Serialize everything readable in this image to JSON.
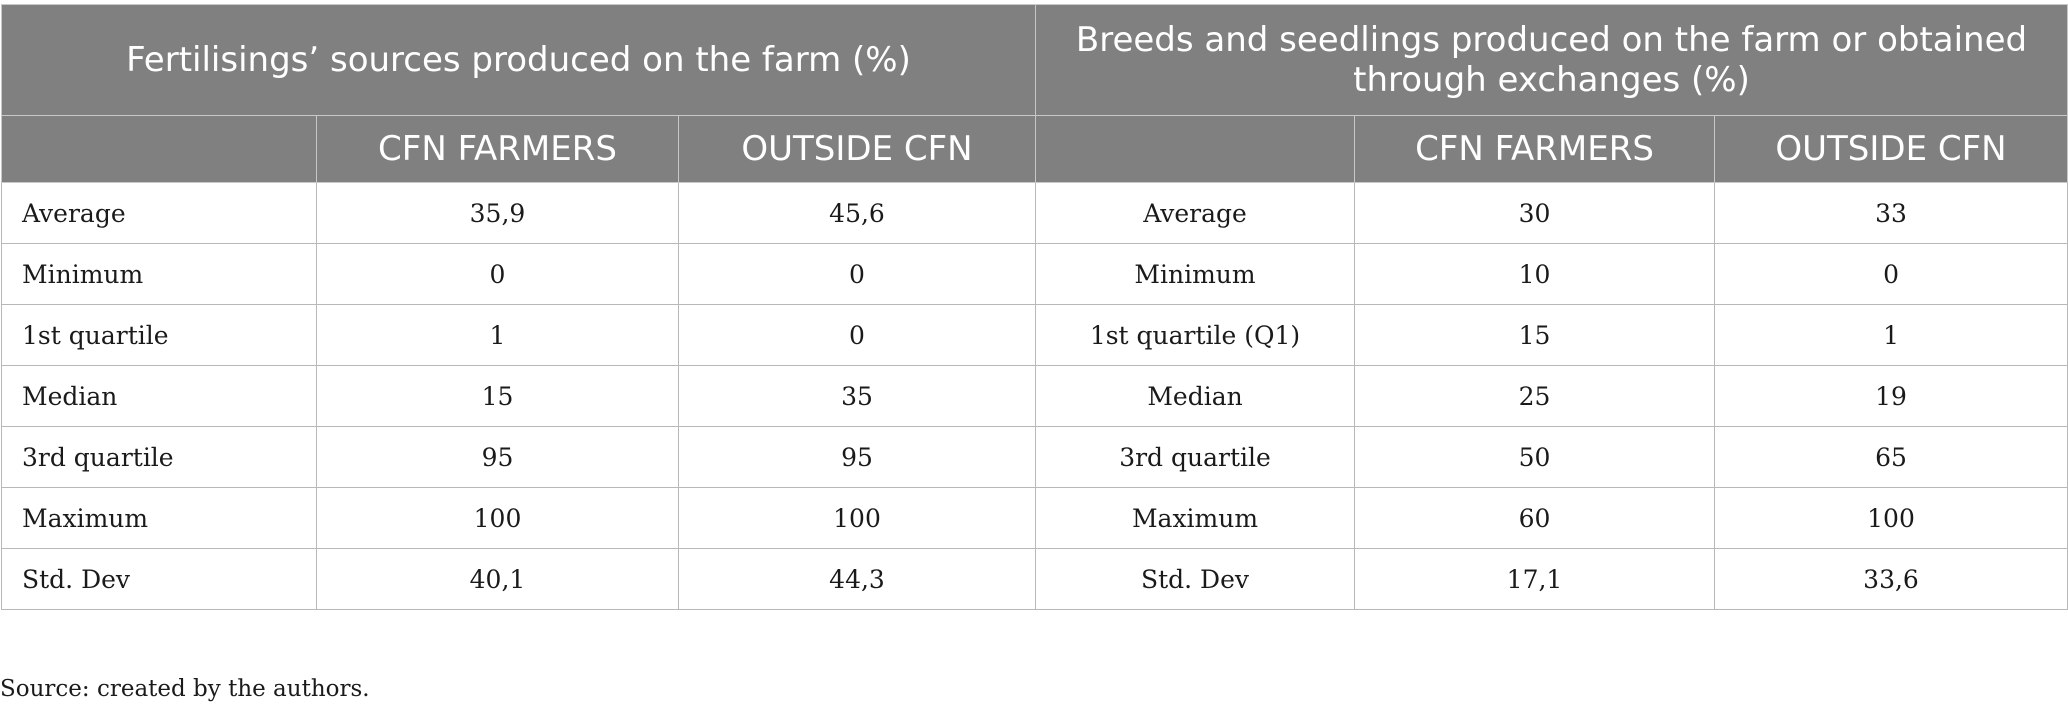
{
  "table": {
    "group_headers": {
      "left": "Fertilisings’ sources produced on the farm (%)",
      "right": "Breeds and seedlings produced on the farm or obtained through exchanges (%)"
    },
    "column_headers": {
      "left_label": "",
      "left_cfn": "CFN FARMERS",
      "left_outside": "OUTSIDE CFN",
      "right_label": "",
      "right_cfn": "CFN FARMERS",
      "right_outside": "OUTSIDE CFN"
    },
    "rows": [
      {
        "left_label": "Average",
        "left_cfn": "35,9",
        "left_outside": "45,6",
        "right_label": "Average",
        "right_cfn": "30",
        "right_outside": "33"
      },
      {
        "left_label": "Minimum",
        "left_cfn": "0",
        "left_outside": "0",
        "right_label": "Minimum",
        "right_cfn": "10",
        "right_outside": "0"
      },
      {
        "left_label": "1st quartile",
        "left_cfn": "1",
        "left_outside": "0",
        "right_label": "1st quartile (Q1)",
        "right_cfn": "15",
        "right_outside": "1"
      },
      {
        "left_label": "Median",
        "left_cfn": "15",
        "left_outside": "35",
        "right_label": "Median",
        "right_cfn": "25",
        "right_outside": "19"
      },
      {
        "left_label": "3rd quartile",
        "left_cfn": "95",
        "left_outside": "95",
        "right_label": "3rd quartile",
        "right_cfn": "50",
        "right_outside": "65"
      },
      {
        "left_label": "Maximum",
        "left_cfn": "100",
        "left_outside": "100",
        "right_label": "Maximum",
        "right_cfn": "60",
        "right_outside": "100"
      },
      {
        "left_label": "Std. Dev",
        "left_cfn": "40,1",
        "left_outside": "44,3",
        "right_label": "Std. Dev",
        "right_cfn": "17,1",
        "right_outside": "33,6"
      }
    ]
  },
  "source_note": "Source: created by the authors.",
  "colors": {
    "header_bg": "#808080",
    "header_text": "#ffffff",
    "grid": "#b8b8b8"
  }
}
